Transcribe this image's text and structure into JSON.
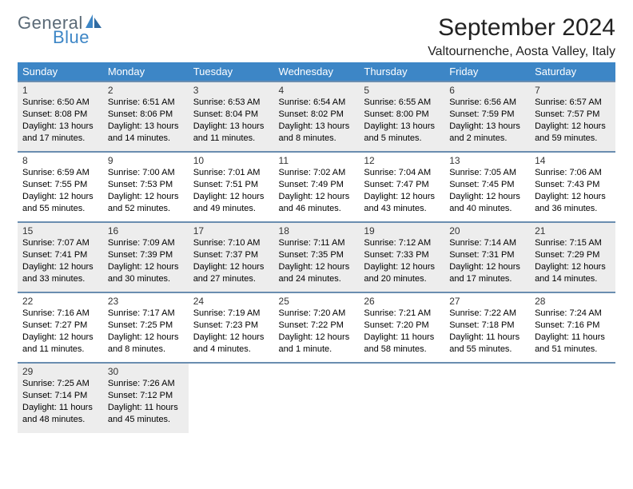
{
  "logo": {
    "word1": "General",
    "word2": "Blue"
  },
  "header": {
    "month_title": "September 2024",
    "location": "Valtournenche, Aosta Valley, Italy"
  },
  "colors": {
    "header_bg": "#3d86c6",
    "row_border": "#6a8db0",
    "shade_bg": "#ededed",
    "logo_gray": "#5a6a77",
    "logo_blue": "#3d86c6"
  },
  "weekdays": [
    "Sunday",
    "Monday",
    "Tuesday",
    "Wednesday",
    "Thursday",
    "Friday",
    "Saturday"
  ],
  "weeks": [
    [
      {
        "n": "1",
        "sunrise": "Sunrise: 6:50 AM",
        "sunset": "Sunset: 8:08 PM",
        "day1": "Daylight: 13 hours",
        "day2": "and 17 minutes."
      },
      {
        "n": "2",
        "sunrise": "Sunrise: 6:51 AM",
        "sunset": "Sunset: 8:06 PM",
        "day1": "Daylight: 13 hours",
        "day2": "and 14 minutes."
      },
      {
        "n": "3",
        "sunrise": "Sunrise: 6:53 AM",
        "sunset": "Sunset: 8:04 PM",
        "day1": "Daylight: 13 hours",
        "day2": "and 11 minutes."
      },
      {
        "n": "4",
        "sunrise": "Sunrise: 6:54 AM",
        "sunset": "Sunset: 8:02 PM",
        "day1": "Daylight: 13 hours",
        "day2": "and 8 minutes."
      },
      {
        "n": "5",
        "sunrise": "Sunrise: 6:55 AM",
        "sunset": "Sunset: 8:00 PM",
        "day1": "Daylight: 13 hours",
        "day2": "and 5 minutes."
      },
      {
        "n": "6",
        "sunrise": "Sunrise: 6:56 AM",
        "sunset": "Sunset: 7:59 PM",
        "day1": "Daylight: 13 hours",
        "day2": "and 2 minutes."
      },
      {
        "n": "7",
        "sunrise": "Sunrise: 6:57 AM",
        "sunset": "Sunset: 7:57 PM",
        "day1": "Daylight: 12 hours",
        "day2": "and 59 minutes."
      }
    ],
    [
      {
        "n": "8",
        "sunrise": "Sunrise: 6:59 AM",
        "sunset": "Sunset: 7:55 PM",
        "day1": "Daylight: 12 hours",
        "day2": "and 55 minutes."
      },
      {
        "n": "9",
        "sunrise": "Sunrise: 7:00 AM",
        "sunset": "Sunset: 7:53 PM",
        "day1": "Daylight: 12 hours",
        "day2": "and 52 minutes."
      },
      {
        "n": "10",
        "sunrise": "Sunrise: 7:01 AM",
        "sunset": "Sunset: 7:51 PM",
        "day1": "Daylight: 12 hours",
        "day2": "and 49 minutes."
      },
      {
        "n": "11",
        "sunrise": "Sunrise: 7:02 AM",
        "sunset": "Sunset: 7:49 PM",
        "day1": "Daylight: 12 hours",
        "day2": "and 46 minutes."
      },
      {
        "n": "12",
        "sunrise": "Sunrise: 7:04 AM",
        "sunset": "Sunset: 7:47 PM",
        "day1": "Daylight: 12 hours",
        "day2": "and 43 minutes."
      },
      {
        "n": "13",
        "sunrise": "Sunrise: 7:05 AM",
        "sunset": "Sunset: 7:45 PM",
        "day1": "Daylight: 12 hours",
        "day2": "and 40 minutes."
      },
      {
        "n": "14",
        "sunrise": "Sunrise: 7:06 AM",
        "sunset": "Sunset: 7:43 PM",
        "day1": "Daylight: 12 hours",
        "day2": "and 36 minutes."
      }
    ],
    [
      {
        "n": "15",
        "sunrise": "Sunrise: 7:07 AM",
        "sunset": "Sunset: 7:41 PM",
        "day1": "Daylight: 12 hours",
        "day2": "and 33 minutes."
      },
      {
        "n": "16",
        "sunrise": "Sunrise: 7:09 AM",
        "sunset": "Sunset: 7:39 PM",
        "day1": "Daylight: 12 hours",
        "day2": "and 30 minutes."
      },
      {
        "n": "17",
        "sunrise": "Sunrise: 7:10 AM",
        "sunset": "Sunset: 7:37 PM",
        "day1": "Daylight: 12 hours",
        "day2": "and 27 minutes."
      },
      {
        "n": "18",
        "sunrise": "Sunrise: 7:11 AM",
        "sunset": "Sunset: 7:35 PM",
        "day1": "Daylight: 12 hours",
        "day2": "and 24 minutes."
      },
      {
        "n": "19",
        "sunrise": "Sunrise: 7:12 AM",
        "sunset": "Sunset: 7:33 PM",
        "day1": "Daylight: 12 hours",
        "day2": "and 20 minutes."
      },
      {
        "n": "20",
        "sunrise": "Sunrise: 7:14 AM",
        "sunset": "Sunset: 7:31 PM",
        "day1": "Daylight: 12 hours",
        "day2": "and 17 minutes."
      },
      {
        "n": "21",
        "sunrise": "Sunrise: 7:15 AM",
        "sunset": "Sunset: 7:29 PM",
        "day1": "Daylight: 12 hours",
        "day2": "and 14 minutes."
      }
    ],
    [
      {
        "n": "22",
        "sunrise": "Sunrise: 7:16 AM",
        "sunset": "Sunset: 7:27 PM",
        "day1": "Daylight: 12 hours",
        "day2": "and 11 minutes."
      },
      {
        "n": "23",
        "sunrise": "Sunrise: 7:17 AM",
        "sunset": "Sunset: 7:25 PM",
        "day1": "Daylight: 12 hours",
        "day2": "and 8 minutes."
      },
      {
        "n": "24",
        "sunrise": "Sunrise: 7:19 AM",
        "sunset": "Sunset: 7:23 PM",
        "day1": "Daylight: 12 hours",
        "day2": "and 4 minutes."
      },
      {
        "n": "25",
        "sunrise": "Sunrise: 7:20 AM",
        "sunset": "Sunset: 7:22 PM",
        "day1": "Daylight: 12 hours",
        "day2": "and 1 minute."
      },
      {
        "n": "26",
        "sunrise": "Sunrise: 7:21 AM",
        "sunset": "Sunset: 7:20 PM",
        "day1": "Daylight: 11 hours",
        "day2": "and 58 minutes."
      },
      {
        "n": "27",
        "sunrise": "Sunrise: 7:22 AM",
        "sunset": "Sunset: 7:18 PM",
        "day1": "Daylight: 11 hours",
        "day2": "and 55 minutes."
      },
      {
        "n": "28",
        "sunrise": "Sunrise: 7:24 AM",
        "sunset": "Sunset: 7:16 PM",
        "day1": "Daylight: 11 hours",
        "day2": "and 51 minutes."
      }
    ],
    [
      {
        "n": "29",
        "sunrise": "Sunrise: 7:25 AM",
        "sunset": "Sunset: 7:14 PM",
        "day1": "Daylight: 11 hours",
        "day2": "and 48 minutes."
      },
      {
        "n": "30",
        "sunrise": "Sunrise: 7:26 AM",
        "sunset": "Sunset: 7:12 PM",
        "day1": "Daylight: 11 hours",
        "day2": "and 45 minutes."
      },
      null,
      null,
      null,
      null,
      null
    ]
  ]
}
